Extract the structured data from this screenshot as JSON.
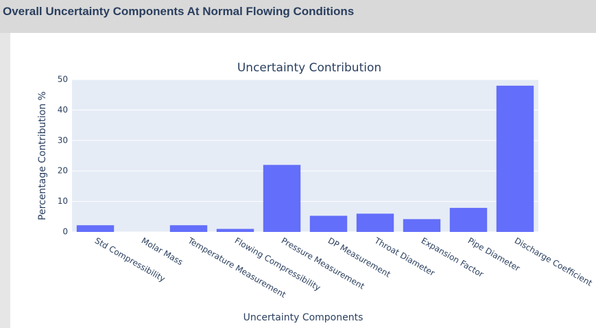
{
  "header": {
    "title": "Overall Uncertainty Components At Normal Flowing Conditions"
  },
  "chart_data": {
    "type": "bar",
    "title": "Uncertainty Contribution",
    "x_label": "Uncertainty Components",
    "y_label": "Percentage Contribution %",
    "categories": [
      "Std Compressibility",
      "Molar Mass",
      "Temperature Measurement",
      "Flowing Compressibility",
      "Pressure Measurement",
      "DP Measurement",
      "Throat Diameter",
      "Expansion Factor",
      "Pipe Diameter",
      "Discharge Coefficient"
    ],
    "values": [
      2.2,
      0,
      2.2,
      1.0,
      22,
      5.3,
      6.0,
      4.2,
      7.9,
      48
    ],
    "color": "#636efa",
    "ylim": [
      0,
      50
    ],
    "yticks": [
      0,
      10,
      20,
      30,
      40,
      50
    ],
    "grid": true
  }
}
